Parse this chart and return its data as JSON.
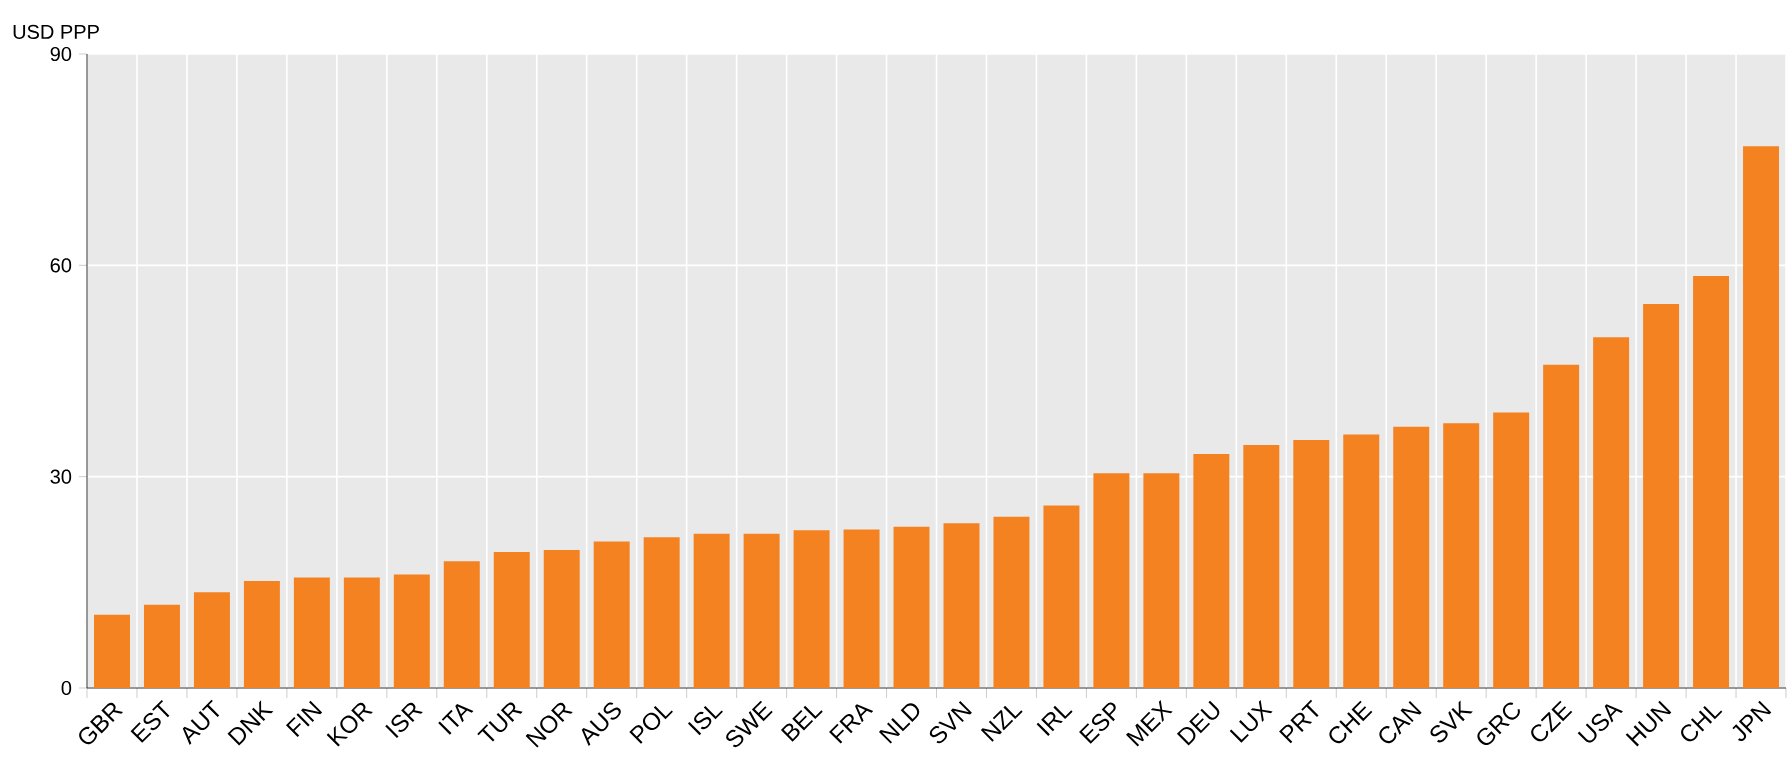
{
  "chart_data": {
    "type": "bar",
    "ylabel": "USD PPP",
    "categories": [
      "GBR",
      "EST",
      "AUT",
      "DNK",
      "FIN",
      "KOR",
      "ISR",
      "ITA",
      "TUR",
      "NOR",
      "AUS",
      "POL",
      "ISL",
      "SWE",
      "BEL",
      "FRA",
      "NLD",
      "SVN",
      "NZL",
      "IRL",
      "ESP",
      "MEX",
      "DEU",
      "LUX",
      "PRT",
      "CHE",
      "CAN",
      "SVK",
      "GRC",
      "CZE",
      "USA",
      "HUN",
      "CHL",
      "JPN"
    ],
    "values": [
      10.4,
      11.8,
      13.6,
      15.2,
      15.7,
      15.7,
      16.1,
      18.0,
      19.3,
      19.6,
      20.8,
      21.4,
      21.9,
      21.9,
      22.4,
      22.5,
      22.9,
      23.4,
      24.3,
      25.9,
      30.5,
      30.5,
      33.2,
      34.5,
      35.2,
      36.0,
      37.1,
      37.6,
      39.1,
      45.9,
      49.8,
      54.5,
      58.5,
      76.9
    ],
    "color": "#f58220",
    "ylim": [
      0,
      90
    ],
    "yticks": [
      0,
      30,
      60,
      90
    ],
    "grid": true
  }
}
